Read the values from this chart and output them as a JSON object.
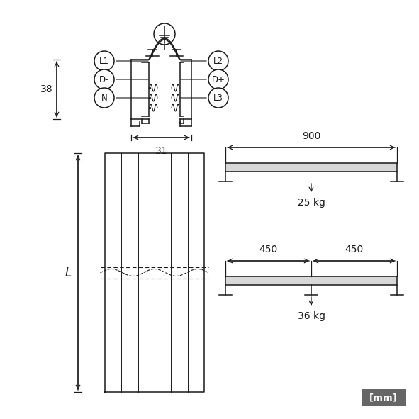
{
  "bg_color": "#ffffff",
  "line_color": "#1a1a1a",
  "dim_color": "#1a1a1a",
  "mm_box_color": "#666666",
  "mm_box_text": "[mm]",
  "label_38": "38",
  "label_31": "31",
  "label_L": "L",
  "label_900": "900",
  "label_25kg": "25 kg",
  "label_450a": "450",
  "label_450b": "450",
  "label_36kg": "36 kg",
  "labels_left": [
    "L1",
    "D-",
    "N"
  ],
  "labels_right": [
    "L2",
    "D+",
    "L3"
  ],
  "figsize": [
    5.91,
    5.91
  ],
  "dpi": 100
}
